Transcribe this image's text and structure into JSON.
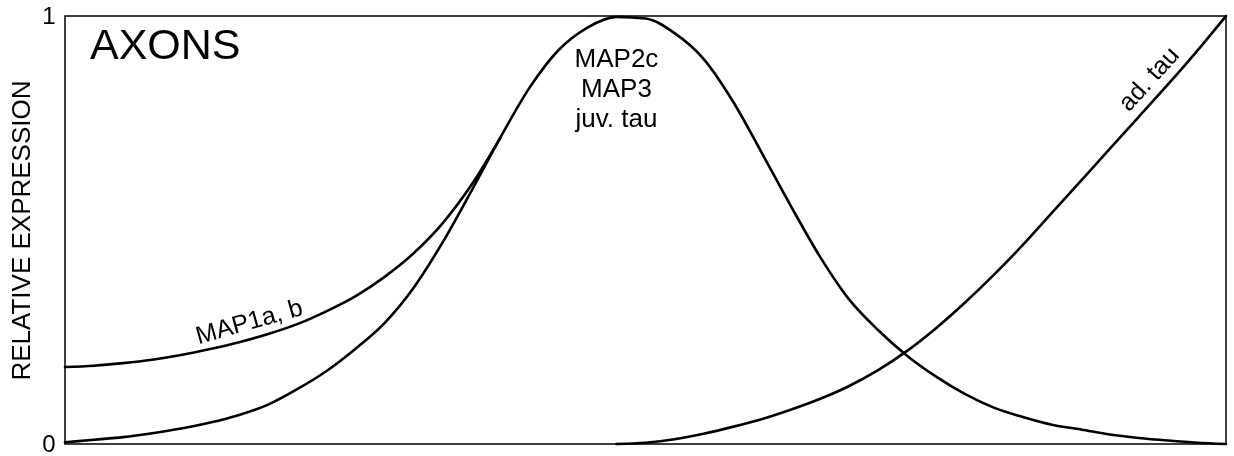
{
  "chart_data": {
    "type": "line",
    "title": "AXONS",
    "ylabel": "RELATIVE EXPRESSION",
    "categories": [
      null,
      null,
      null,
      null,
      null,
      null,
      null,
      null,
      null,
      null,
      null,
      null,
      null,
      null,
      null,
      null,
      null,
      null,
      null,
      null,
      null,
      null,
      null,
      null,
      null,
      null,
      null,
      null,
      null,
      null,
      null,
      null,
      null,
      null,
      null,
      null,
      null,
      null,
      null,
      null,
      null
    ],
    "series": [
      {
        "name": "MAP1a, b",
        "color": "#000000",
        "values": [
          0.18,
          0.183,
          0.189,
          0.197,
          0.208,
          0.222,
          0.238,
          0.257,
          0.28,
          0.31,
          0.345,
          0.39,
          0.445,
          0.515,
          0.605,
          0.716,
          null,
          null,
          null,
          null,
          null,
          null,
          null,
          null,
          null,
          null,
          null,
          null,
          null,
          null,
          null,
          null,
          null,
          null,
          null,
          null,
          null,
          null,
          null,
          null,
          null
        ]
      },
      {
        "name": "MAP2c\nMAP3\njuv. tau",
        "color": "#000000",
        "values": [
          0.004,
          0.01,
          0.016,
          0.025,
          0.036,
          0.05,
          0.068,
          0.092,
          0.128,
          0.17,
          0.222,
          0.282,
          0.364,
          0.47,
          0.591,
          0.716,
          0.832,
          0.92,
          0.973,
          0.998,
          0.994,
          0.96,
          0.9,
          0.802,
          0.681,
          0.557,
          0.439,
          0.339,
          0.267,
          0.207,
          0.158,
          0.117,
          0.085,
          0.063,
          0.045,
          0.034,
          0.022,
          0.014,
          0.008,
          0.003,
          0
        ]
      },
      {
        "name": "ad. tau",
        "color": "#000000",
        "values": [
          null,
          null,
          null,
          null,
          null,
          null,
          null,
          null,
          null,
          null,
          null,
          null,
          null,
          null,
          null,
          null,
          null,
          null,
          null,
          0,
          0.003,
          0.011,
          0.024,
          0.04,
          0.058,
          0.08,
          0.105,
          0.135,
          0.172,
          0.217,
          0.27,
          0.33,
          0.395,
          0.465,
          0.54,
          0.615,
          0.69,
          0.765,
          0.84,
          0.918,
          1.0
        ]
      }
    ],
    "ylim": [
      0,
      1
    ],
    "yticks": [
      0,
      1
    ],
    "tick_labels": "y",
    "line_style": "solid"
  }
}
